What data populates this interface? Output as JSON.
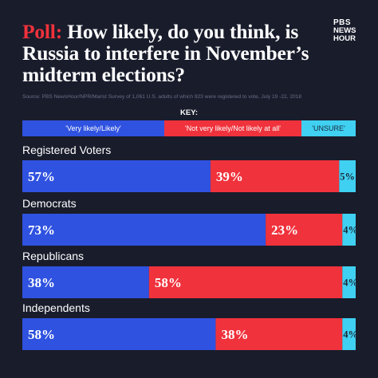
{
  "header": {
    "title_accent": "Poll:",
    "title_rest": "How likely, do you think, is Russia to interfere in November’s midterm elections?",
    "logo_top": "PBS",
    "logo_mid": "NEWS",
    "logo_bottom": "HOUR",
    "source": "Source: PBS NewsHour/NPR/Marist  Survey of 1,061 U.S. adults of which 923 were registered to vote, July 19 -22, 2018"
  },
  "key": {
    "label": "KEY:",
    "items": [
      {
        "label": "'Very likely/Likely'",
        "color": "#2f52e0"
      },
      {
        "label": "'Not very likely/Not likely at all'",
        "color": "#f0323c"
      },
      {
        "label": "'UNSURE'",
        "color": "#3fd0f2"
      }
    ]
  },
  "chart_data": {
    "type": "bar",
    "stacked": true,
    "orientation": "horizontal",
    "categories": [
      "Registered Voters",
      "Democrats",
      "Republicans",
      "Independents"
    ],
    "series": [
      {
        "name": "'Very likely/Likely'",
        "color": "#2f52e0",
        "values": [
          57,
          73,
          38,
          58
        ],
        "labels": [
          "57%",
          "73%",
          "38%",
          "58%"
        ]
      },
      {
        "name": "'Not very likely/Not likely at all'",
        "color": "#f0323c",
        "values": [
          39,
          23,
          58,
          38
        ],
        "labels": [
          "39%",
          "23%",
          "58%",
          "38%"
        ]
      },
      {
        "name": "'UNSURE'",
        "color": "#3fd0f2",
        "values": [
          5,
          4,
          4,
          4
        ],
        "labels": [
          "5%",
          "4%",
          "4%",
          "4%"
        ]
      }
    ],
    "xlim": [
      0,
      100
    ]
  }
}
